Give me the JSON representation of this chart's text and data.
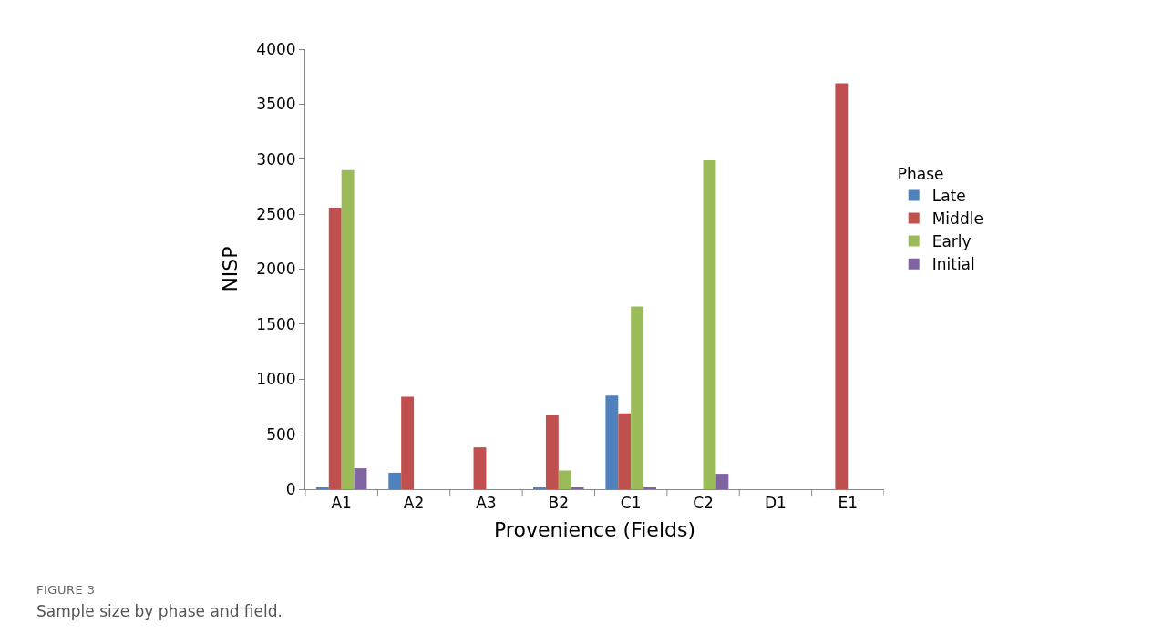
{
  "chart_data": {
    "type": "bar",
    "xlabel": "Provenience (Fields)",
    "ylabel": "NISP",
    "legend_title": "Phase",
    "categories": [
      "A1",
      "A2",
      "A3",
      "B2",
      "C1",
      "C2",
      "D1",
      "E1"
    ],
    "series": [
      {
        "name": "Late",
        "color": "#4f81bd",
        "values": [
          10,
          150,
          0,
          10,
          850,
          0,
          0,
          0
        ]
      },
      {
        "name": "Middle",
        "color": "#c0504d",
        "values": [
          2560,
          840,
          380,
          670,
          690,
          0,
          0,
          3690
        ]
      },
      {
        "name": "Early",
        "color": "#9bbb59",
        "values": [
          2900,
          0,
          0,
          170,
          1660,
          2990,
          0,
          0
        ]
      },
      {
        "name": "Initial",
        "color": "#8064a2",
        "values": [
          190,
          0,
          0,
          10,
          10,
          140,
          0,
          0
        ]
      }
    ],
    "ylim": [
      0,
      4000
    ],
    "yticks": [
      0,
      500,
      1000,
      1500,
      2000,
      2500,
      3000,
      3500,
      4000
    ],
    "grid": false,
    "legend": "right",
    "annotations": [
      "FIGURE 3",
      "Sample size by phase and field."
    ]
  }
}
